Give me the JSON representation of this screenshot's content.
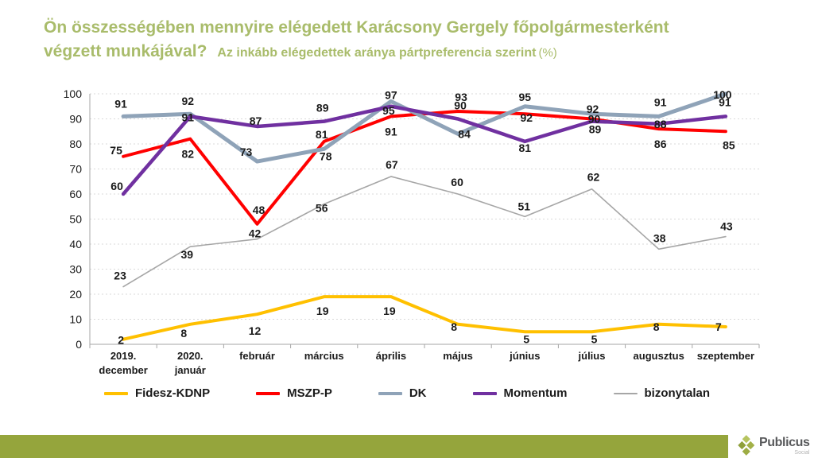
{
  "title": {
    "line1": "Ön összességében mennyire elégedett Karácsony Gergely főpolgármesterként",
    "line2": "végzett munkájával?",
    "subtitle": "Az inkább elégedettek aránya pártpreferencia szerint",
    "subtitle_unit": "(%)"
  },
  "colors": {
    "title_green": "#A9BC6B",
    "footer_bar": "#95A53C",
    "grid": "#D9D9D9",
    "axis": "#A6A6A6",
    "data_label": "#1A1A1A",
    "fidesz_kdnp": "#FFC000",
    "mszp_p": "#FF0000",
    "dk": "#8FA3B8",
    "momentum": "#7030A0",
    "bizonytalan": "#A6A6A6"
  },
  "chart_data": {
    "type": "line",
    "title": "Az inkább elégedettek aránya pártpreferencia szerint (%)",
    "categories": [
      "2019. december",
      "2020. január",
      "február",
      "március",
      "április",
      "május",
      "június",
      "július",
      "augusztus",
      "szeptember"
    ],
    "series": [
      {
        "name": "Fidesz-KDNP",
        "color": "#FFC000",
        "values": [
          2,
          8,
          12,
          19,
          19,
          8,
          5,
          5,
          8,
          7
        ]
      },
      {
        "name": "MSZP-P",
        "color": "#FF0000",
        "values": [
          75,
          82,
          48,
          81,
          91,
          93,
          92,
          90,
          86,
          85
        ]
      },
      {
        "name": "DK",
        "color": "#8FA3B8",
        "values": [
          91,
          92,
          73,
          78,
          97,
          84,
          95,
          92,
          91,
          100
        ]
      },
      {
        "name": "Momentum",
        "color": "#7030A0",
        "values": [
          60,
          91,
          87,
          89,
          95,
          90,
          81,
          89,
          88,
          91
        ]
      },
      {
        "name": "bizonytalan",
        "color": "#A6A6A6",
        "values": [
          23,
          39,
          42,
          56,
          67,
          60,
          51,
          62,
          38,
          43
        ]
      }
    ],
    "xlabel": "",
    "ylabel": "",
    "ylim": [
      0,
      100
    ],
    "ytick_step": 10,
    "grid": "horizontal-dashed",
    "legend_position": "bottom",
    "data_labels": true
  },
  "footer": {
    "brand": "Publicus",
    "brand_sub": "Social"
  }
}
